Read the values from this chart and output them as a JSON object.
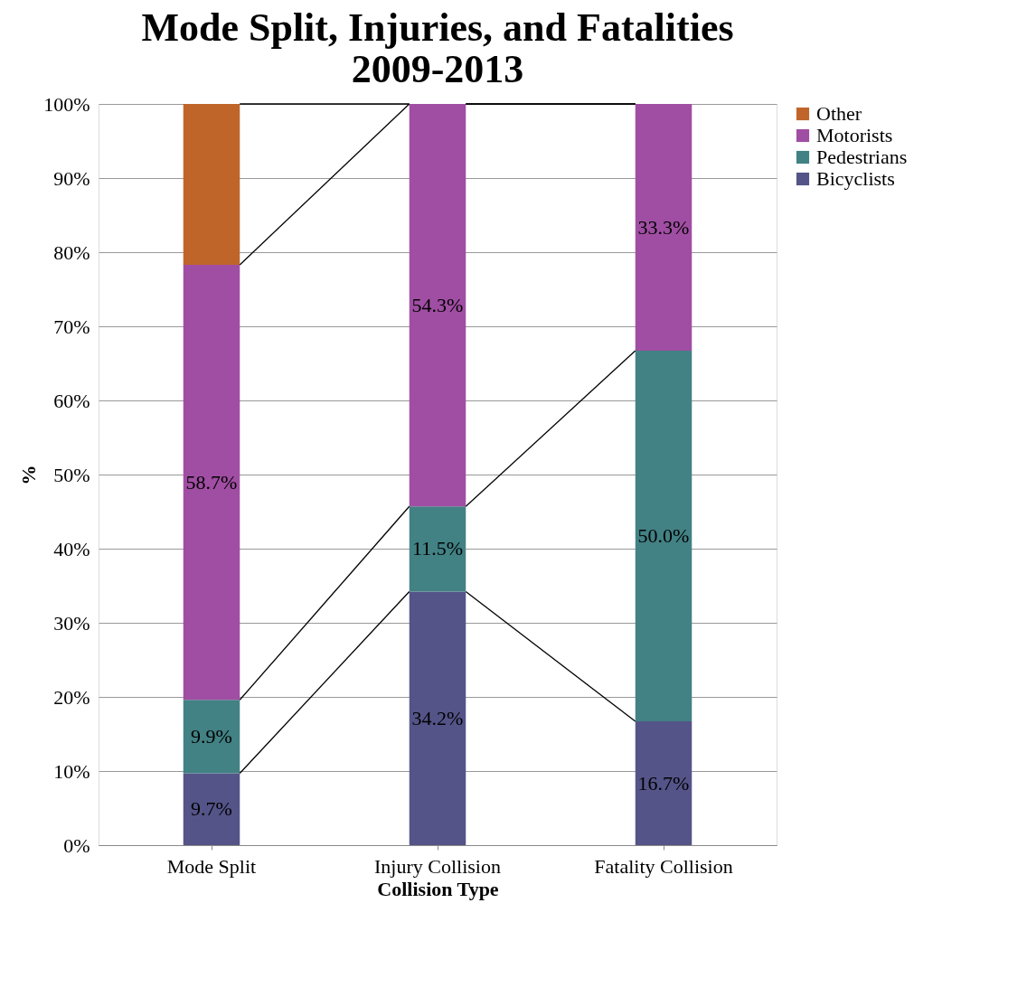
{
  "chart_data": {
    "type": "bar",
    "stacked": true,
    "title": "Mode Split, Injuries, and Fatalities 2009-2013",
    "xlabel": "Collision Type",
    "ylabel": "%",
    "categories": [
      "Mode Split",
      "Injury Collision",
      "Fatality Collision"
    ],
    "series": [
      {
        "name": "Bicyclists",
        "color": "#545489",
        "values": [
          9.7,
          34.2,
          16.7
        ],
        "value_labels": [
          "9.7%",
          "34.2%",
          "16.7%"
        ]
      },
      {
        "name": "Pedestrians",
        "color": "#428184",
        "values": [
          9.9,
          11.5,
          50.0
        ],
        "value_labels": [
          "9.9%",
          "11.5%",
          "50.0%"
        ]
      },
      {
        "name": "Motorists",
        "color": "#a04ea3",
        "values": [
          58.7,
          54.3,
          33.3
        ],
        "value_labels": [
          "58.7%",
          "54.3%",
          "33.3%"
        ]
      },
      {
        "name": "Other",
        "color": "#c0652a",
        "values": [
          21.7,
          null,
          null
        ],
        "value_labels": [
          null,
          null,
          null
        ]
      }
    ],
    "ylim": [
      0,
      100
    ],
    "yticks": [
      {
        "value": 0,
        "label": "0%"
      },
      {
        "value": 10,
        "label": "10%"
      },
      {
        "value": 20,
        "label": "20%"
      },
      {
        "value": 30,
        "label": "30%"
      },
      {
        "value": 40,
        "label": "40%"
      },
      {
        "value": 50,
        "label": "50%"
      },
      {
        "value": 60,
        "label": "60%"
      },
      {
        "value": 70,
        "label": "70%"
      },
      {
        "value": 80,
        "label": "80%"
      },
      {
        "value": 90,
        "label": "90%"
      },
      {
        "value": 100,
        "label": "100%"
      }
    ],
    "grid": "y",
    "legend": "right"
  }
}
